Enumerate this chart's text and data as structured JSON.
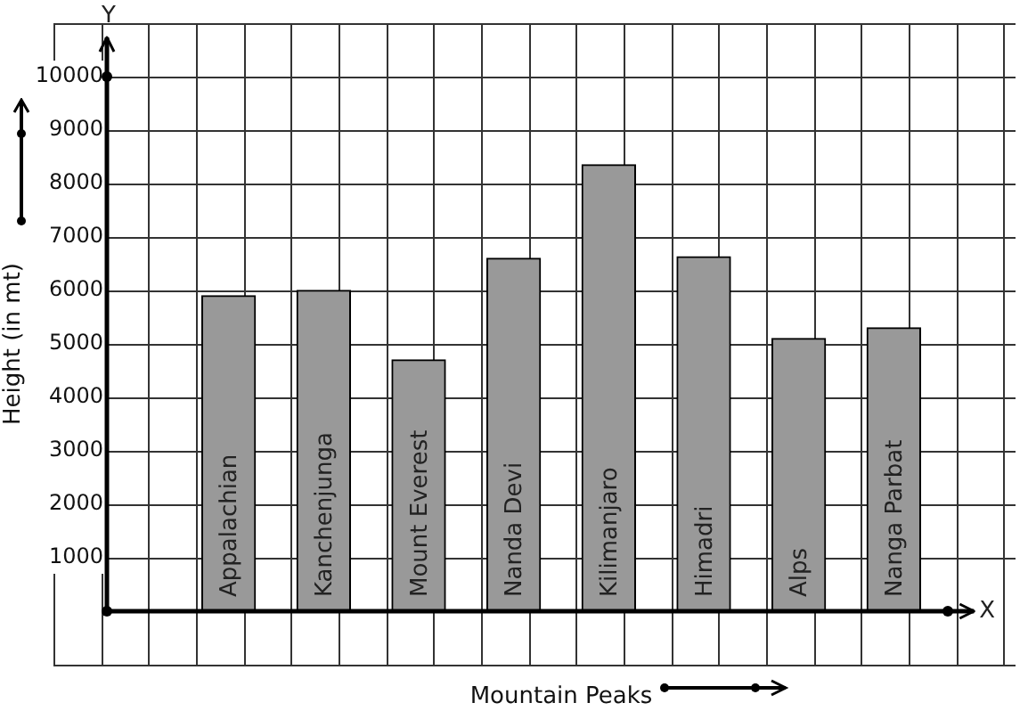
{
  "chart_data": {
    "type": "bar",
    "xlabel": "Mountain Peaks",
    "ylabel": "Height (in mt)",
    "categories": [
      "Appalachian",
      "Kanchenjunga",
      "Mount Everest",
      "Nanda Devi",
      "Kilimanjaro",
      "Himadri",
      "Alps",
      "Nanga Parbat"
    ],
    "values": [
      5900,
      6000,
      4700,
      6600,
      8350,
      6630,
      5100,
      5300
    ],
    "color": "#999999",
    "ylim": [
      -1000,
      11000
    ],
    "yticks": [
      1000,
      2000,
      3000,
      4000,
      5000,
      6000,
      7000,
      8000,
      9000,
      10000
    ],
    "grid": true,
    "annotations": [
      "Y",
      "X"
    ]
  }
}
